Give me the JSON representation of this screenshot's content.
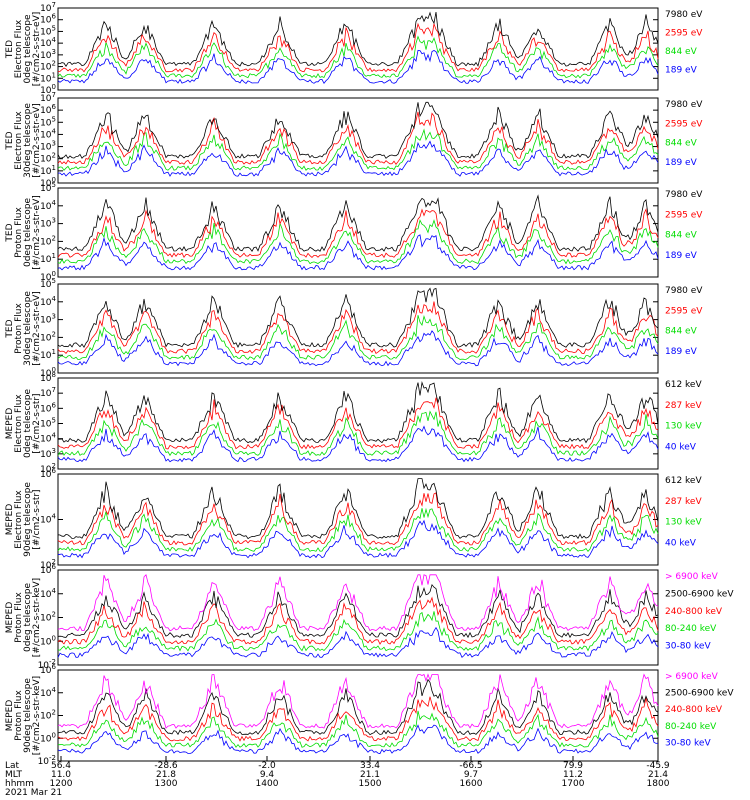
{
  "chart_data": [
    {
      "type": "line",
      "ylabel": [
        "TED",
        "Electron Flux",
        "0deg telescope",
        "[#/cm2-s-str-eV]"
      ],
      "ylim": [
        1,
        10000000
      ],
      "log": true,
      "yticks": [
        "10^0",
        "10^1",
        "10^2",
        "10^3",
        "10^4",
        "10^5",
        "10^6",
        "10^7"
      ],
      "series": [
        {
          "name": "7980 eV",
          "color": "#000000"
        },
        {
          "name": "2595 eV",
          "color": "#ff0000"
        },
        {
          "name": "844 eV",
          "color": "#00dd00"
        },
        {
          "name": "189 eV",
          "color": "#0000ff"
        }
      ]
    },
    {
      "type": "line",
      "ylabel": [
        "TED",
        "Electron Flux",
        "30deg telescope",
        "[#/cm2-s-str-eV]"
      ],
      "ylim": [
        1,
        10000000
      ],
      "log": true,
      "yticks": [
        "10^0",
        "10^1",
        "10^2",
        "10^3",
        "10^4",
        "10^5",
        "10^6",
        "10^7"
      ],
      "series": [
        {
          "name": "7980 eV",
          "color": "#000000"
        },
        {
          "name": "2595 eV",
          "color": "#ff0000"
        },
        {
          "name": "844 eV",
          "color": "#00dd00"
        },
        {
          "name": "189 eV",
          "color": "#0000ff"
        }
      ]
    },
    {
      "type": "line",
      "ylabel": [
        "TED",
        "Proton Flux",
        "0deg telescope",
        "[#/cm2-s-str-eV]"
      ],
      "ylim": [
        1,
        100000
      ],
      "log": true,
      "yticks": [
        "10^0",
        "10^1",
        "10^2",
        "10^3",
        "10^4",
        "10^5"
      ],
      "series": [
        {
          "name": "7980 eV",
          "color": "#000000"
        },
        {
          "name": "2595 eV",
          "color": "#ff0000"
        },
        {
          "name": "844 eV",
          "color": "#00dd00"
        },
        {
          "name": "189 eV",
          "color": "#0000ff"
        }
      ]
    },
    {
      "type": "line",
      "ylabel": [
        "TED",
        "Proton Flux",
        "30deg telescope",
        "[#/cm2-s-str-eV]"
      ],
      "ylim": [
        1,
        100000
      ],
      "log": true,
      "yticks": [
        "10^0",
        "10^1",
        "10^2",
        "10^3",
        "10^4",
        "10^5"
      ],
      "series": [
        {
          "name": "7980 eV",
          "color": "#000000"
        },
        {
          "name": "2595 eV",
          "color": "#ff0000"
        },
        {
          "name": "844 eV",
          "color": "#00dd00"
        },
        {
          "name": "189 eV",
          "color": "#0000ff"
        }
      ]
    },
    {
      "type": "line",
      "ylabel": [
        "MEPED",
        "Electron Flux",
        "0deg telescope",
        "[#/cm2-s-str]"
      ],
      "ylim": [
        100,
        100000000
      ],
      "log": true,
      "yticks": [
        "10^2",
        "10^3",
        "10^4",
        "10^5",
        "10^6",
        "10^7",
        "10^8"
      ],
      "series": [
        {
          "name": "612 keV",
          "color": "#000000"
        },
        {
          "name": "287 keV",
          "color": "#ff0000"
        },
        {
          "name": "130 keV",
          "color": "#00dd00"
        },
        {
          "name": "40 keV",
          "color": "#0000ff"
        }
      ]
    },
    {
      "type": "line",
      "ylabel": [
        "MEPED",
        "Electron Flux",
        "90deg telescope",
        "[#/cm2-s-str]"
      ],
      "ylim": [
        100,
        1000000
      ],
      "log": true,
      "yticks": [
        "10^2",
        "10^4",
        "10^6"
      ],
      "series": [
        {
          "name": "612 keV",
          "color": "#000000"
        },
        {
          "name": "287 keV",
          "color": "#ff0000"
        },
        {
          "name": "130 keV",
          "color": "#00dd00"
        },
        {
          "name": "40 keV",
          "color": "#0000ff"
        }
      ]
    },
    {
      "type": "line",
      "ylabel": [
        "MEPED",
        "Proton Flux",
        "0deg telescope",
        "[#/cm2-s-str-keV]"
      ],
      "ylim": [
        0.01,
        1000000
      ],
      "log": true,
      "yticks": [
        "10^-2",
        "10^0",
        "10^2",
        "10^4",
        "10^6"
      ],
      "series": [
        {
          "name": "> 6900 keV",
          "color": "#ff00ff"
        },
        {
          "name": "2500-6900 keV",
          "color": "#000000"
        },
        {
          "name": "240-800 keV",
          "color": "#ff0000"
        },
        {
          "name": "80-240 keV",
          "color": "#00dd00"
        },
        {
          "name": "30-80 keV",
          "color": "#0000ff"
        }
      ]
    },
    {
      "type": "line",
      "ylabel": [
        "MEPED",
        "Proton Flux",
        "90deg telescope",
        "[#/cm2-s-str-keV]"
      ],
      "ylim": [
        0.01,
        1000000
      ],
      "log": true,
      "yticks": [
        "10^-2",
        "10^0",
        "10^2",
        "10^4",
        "10^6"
      ],
      "series": [
        {
          "name": "> 6900 keV",
          "color": "#ff00ff"
        },
        {
          "name": "2500-6900 keV",
          "color": "#000000"
        },
        {
          "name": "240-800 keV",
          "color": "#ff0000"
        },
        {
          "name": "80-240 keV",
          "color": "#00dd00"
        },
        {
          "name": "30-80 keV",
          "color": "#0000ff"
        }
      ]
    }
  ],
  "x_axis": {
    "row_labels": [
      "Lat",
      "MLT",
      "hhmm",
      "2021 Mar 21"
    ],
    "ticks": [
      {
        "lat": "56.4",
        "mlt": "11.0",
        "hhmm": "1200"
      },
      {
        "lat": "-28.6",
        "mlt": "21.8",
        "hhmm": "1300"
      },
      {
        "lat": "-2.0",
        "mlt": "9.4",
        "hhmm": "1400"
      },
      {
        "lat": "33.4",
        "mlt": "21.1",
        "hhmm": "1500"
      },
      {
        "lat": "-66.5",
        "mlt": "9.7",
        "hhmm": "1600"
      },
      {
        "lat": "79.9",
        "mlt": "11.2",
        "hhmm": "1700"
      },
      {
        "lat": "-45.9",
        "mlt": "21.4",
        "hhmm": "1800"
      }
    ]
  }
}
